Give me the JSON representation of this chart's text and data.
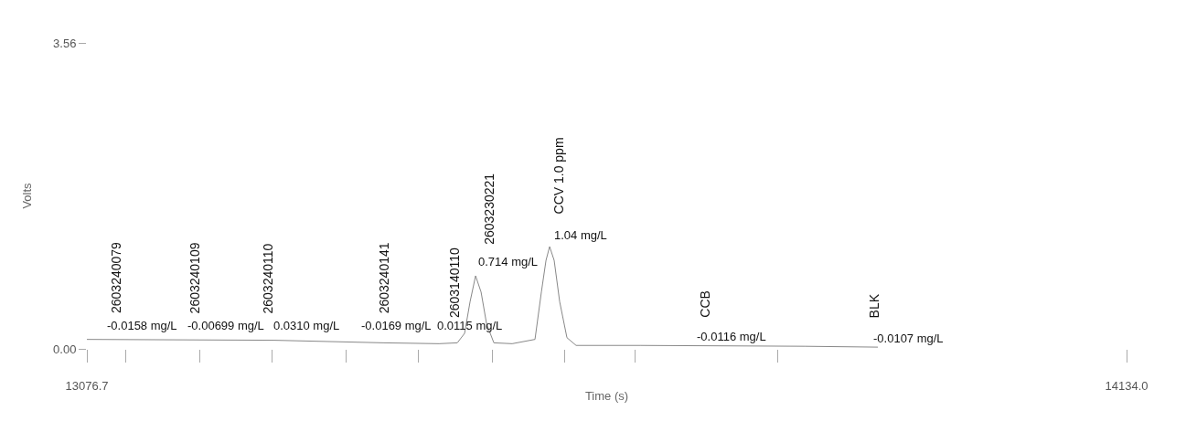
{
  "chart_data": {
    "type": "line",
    "xlabel": "Time (s)",
    "ylabel": "Volts",
    "x": [
      13076.7,
      13267.3,
      13378.9,
      13434.8,
      13453.4,
      13460.8,
      13466.4,
      13472.0,
      13477.6,
      13483.2,
      13490.6,
      13509.2,
      13532.4,
      13538.9,
      13543.6,
      13547.3,
      13551.9,
      13557.5,
      13564.9,
      13574.2,
      13639.4,
      13806.8,
      13881.1
    ],
    "series": [
      {
        "color": "#888888",
        "values": [
          0.11,
          0.1,
          0.07,
          0.06,
          0.07,
          0.18,
          0.55,
          0.85,
          0.66,
          0.29,
          0.07,
          0.06,
          0.11,
          0.66,
          1.03,
          1.19,
          1.03,
          0.55,
          0.13,
          0.04,
          0.04,
          0.03,
          0.02
        ]
      }
    ],
    "xlim": [
      13076.7,
      14134.0
    ],
    "xticks": [
      {
        "value": 13076.7,
        "label": "13076.7"
      },
      {
        "value": 13115.8,
        "label": null
      },
      {
        "value": 13191.1,
        "label": null
      },
      {
        "value": 13265.2,
        "label": null
      },
      {
        "value": 13339.9,
        "label": null
      },
      {
        "value": 13413.4,
        "label": null
      },
      {
        "value": 13488.7,
        "label": null
      },
      {
        "value": 13562.2,
        "label": null
      },
      {
        "value": 13633.8,
        "label": null
      },
      {
        "value": 13778.8,
        "label": null
      },
      {
        "value": 14134.0,
        "label": "14134.0"
      }
    ],
    "ylim": [
      0,
      3.56
    ],
    "yticks": [
      {
        "value": 0,
        "label": "0.00"
      },
      {
        "value": 3.56,
        "label": "3.56"
      }
    ],
    "marker": "none",
    "line_style": "solid",
    "annotations": [
      "2603240079",
      "-0.0158 mg/L",
      "2603240109",
      "-0.00699 mg/L",
      "2603240110",
      "0.0310 mg/L",
      "2603240141",
      "-0.0169 mg/L",
      "2603140110",
      "0.0115 mg/L",
      "2603230221",
      "0.714 mg/L",
      "CCV 1.0 ppm",
      "1.04 mg/L",
      "CCB",
      "-0.0116 mg/L",
      "BLK",
      "-0.0107 mg/L"
    ]
  }
}
